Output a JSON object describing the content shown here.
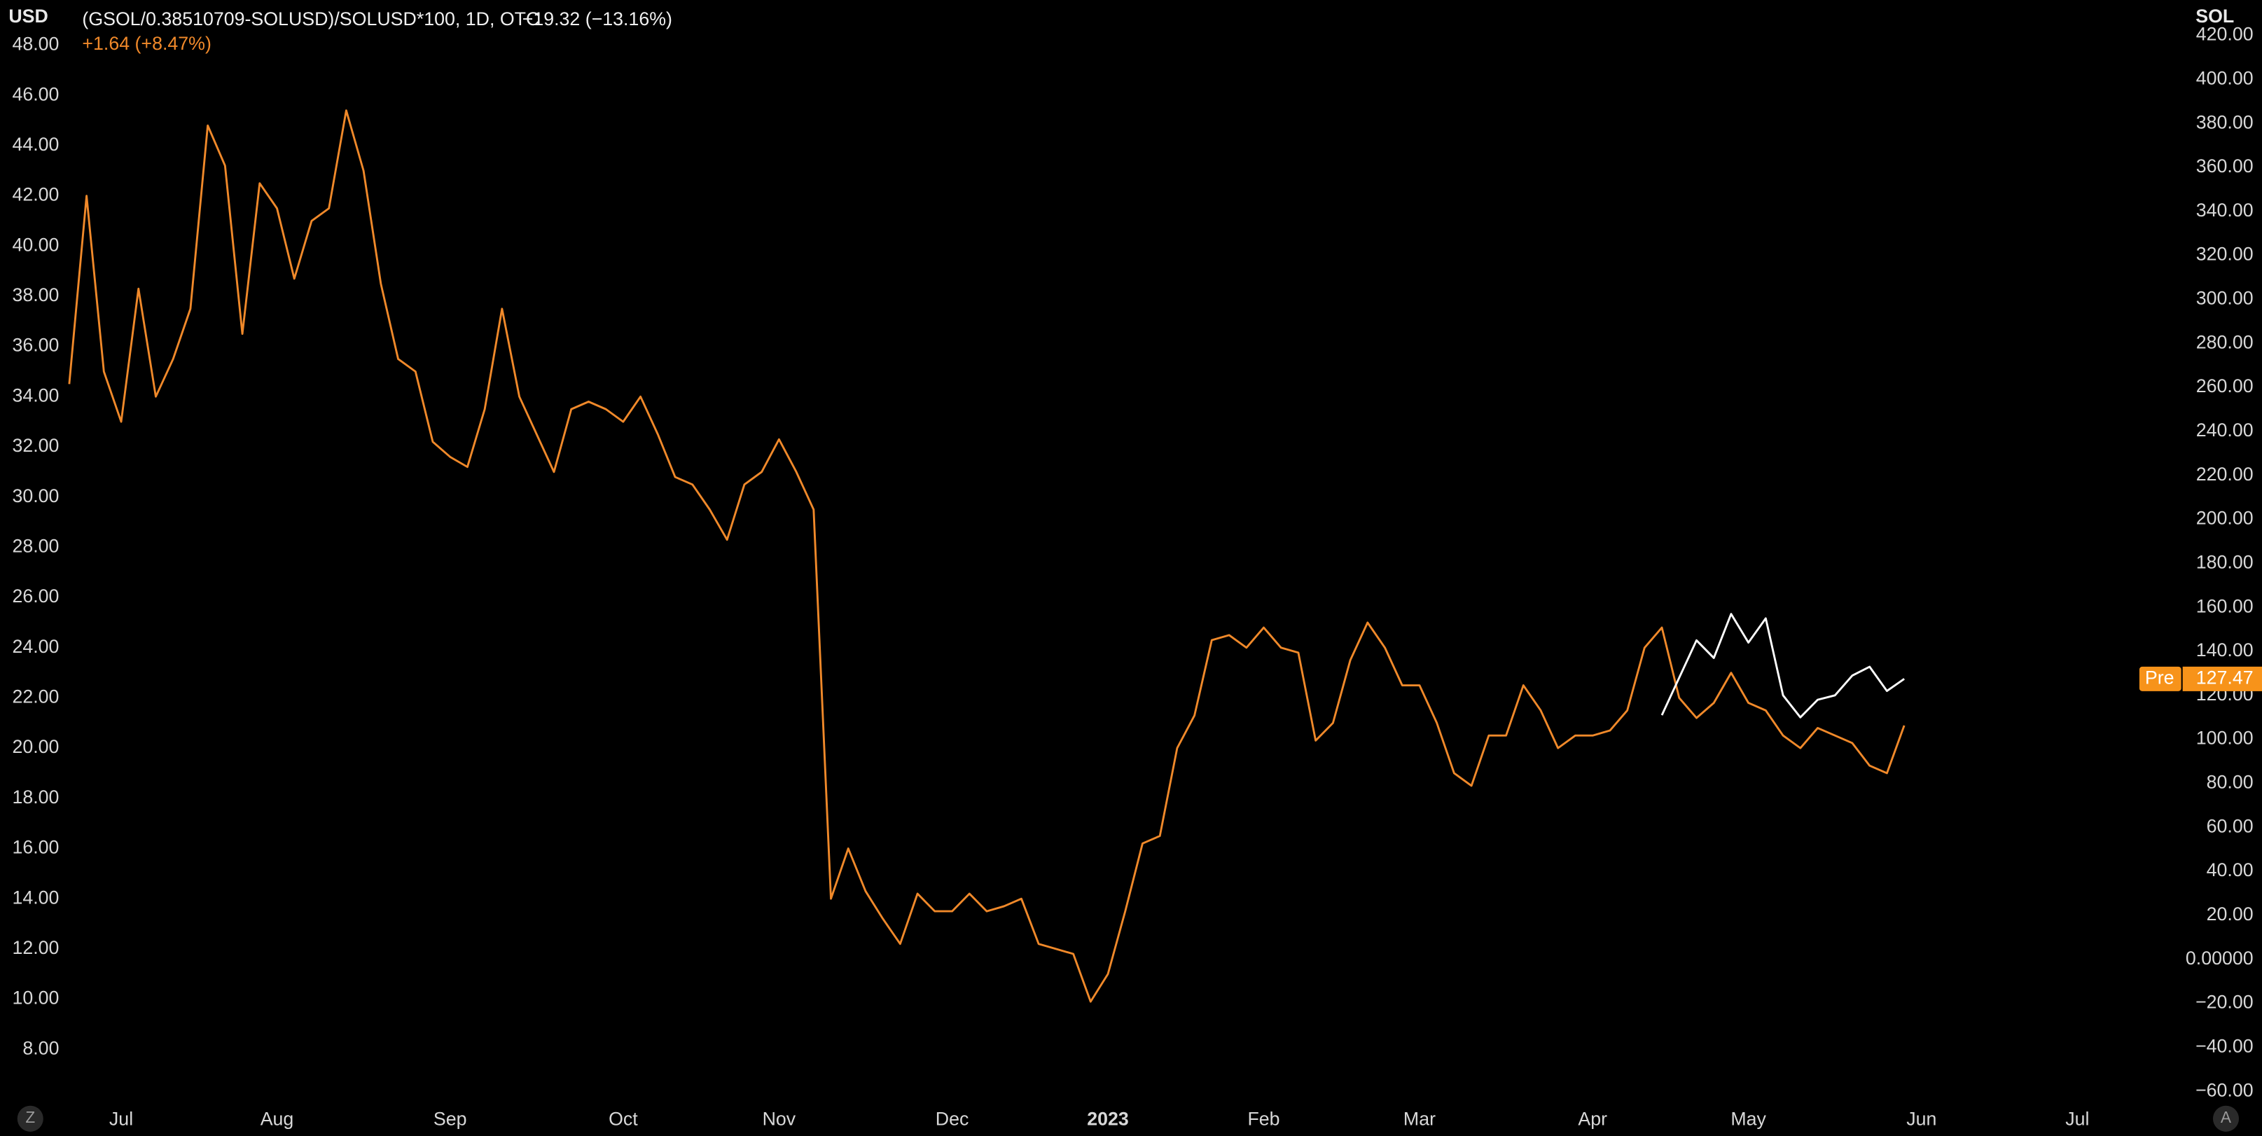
{
  "chart_data": {
    "type": "line",
    "title": "(GSOL/0.38510709-SOLUSD)/SOLUSD*100, 1D, OTC",
    "change": "−19.32 (−13.16%)",
    "change_2": "+1.64 (+8.47%)",
    "y_unit": "USD",
    "y2_unit": "SOL",
    "price_tag": {
      "session": "Pre",
      "value_label": "127.47"
    },
    "scale_buttons": [
      "Z",
      "A"
    ],
    "background": "#000000",
    "grid": false,
    "categories": [
      null,
      null,
      null,
      "Jul",
      null,
      null,
      null,
      null,
      null,
      null,
      null,
      null,
      "Aug",
      null,
      null,
      null,
      null,
      null,
      null,
      null,
      null,
      null,
      "Sep",
      null,
      null,
      null,
      null,
      null,
      null,
      null,
      null,
      null,
      "Oct",
      null,
      null,
      null,
      null,
      null,
      null,
      null,
      null,
      "Nov",
      null,
      null,
      null,
      null,
      null,
      null,
      null,
      null,
      null,
      "Dec",
      null,
      null,
      null,
      null,
      null,
      null,
      null,
      null,
      "2023",
      null,
      null,
      null,
      null,
      null,
      null,
      null,
      null,
      "Feb",
      null,
      null,
      null,
      null,
      null,
      null,
      null,
      null,
      "Mar",
      null,
      null,
      null,
      null,
      null,
      null,
      null,
      null,
      null,
      "Apr",
      null,
      null,
      null,
      null,
      null,
      null,
      null,
      null,
      "May",
      null,
      null,
      null,
      null,
      null,
      null,
      null,
      null,
      null,
      "Jun",
      null,
      null,
      null,
      null,
      null,
      null,
      null,
      null,
      "Jul",
      null,
      null,
      null,
      null,
      null
    ],
    "series": [
      {
        "name": "(GSOL/0.38510709-SOLUSD)/SOLUSD*100",
        "color": "#f0892a",
        "axis": "y",
        "values": [
          34.5,
          42,
          35,
          33,
          38.3,
          34,
          35.5,
          37.5,
          44.8,
          43.2,
          36.5,
          42.5,
          41.5,
          38.7,
          41,
          41.5,
          45.4,
          43,
          38.5,
          35.5,
          35,
          32.2,
          31.6,
          31.2,
          33.5,
          37.5,
          34,
          32.5,
          31,
          33.5,
          33.8,
          33.5,
          33,
          34,
          32.5,
          30.8,
          30.5,
          29.5,
          28.3,
          30.5,
          31,
          32.3,
          31,
          29.5,
          14,
          16,
          14.3,
          13.2,
          12.2,
          14.2,
          13.5,
          13.5,
          14.2,
          13.5,
          13.7,
          14,
          12.2,
          12,
          11.8,
          9.9,
          11,
          13.5,
          16.2,
          16.5,
          20,
          21.3,
          24.3,
          24.5,
          24,
          24.8,
          24,
          23.8,
          20.3,
          21,
          23.5,
          25,
          24,
          22.5,
          22.5,
          21,
          19,
          18.5,
          20.5,
          20.5,
          22.5,
          21.5,
          20,
          20.5,
          20.5,
          20.7,
          21.5,
          24,
          24.8,
          22,
          21.2,
          21.8,
          23,
          21.8,
          21.5,
          20.5,
          20,
          20.8,
          20.5,
          20.2,
          19.3,
          19,
          20.9,
          null,
          null,
          null,
          null,
          null,
          null,
          null,
          null,
          null,
          null,
          null,
          null,
          null,
          null,
          null
        ]
      },
      {
        "name": "SOL",
        "color": "#ffffff",
        "axis": "y2",
        "values": [
          null,
          null,
          null,
          null,
          null,
          null,
          null,
          null,
          null,
          null,
          null,
          null,
          null,
          null,
          null,
          null,
          null,
          null,
          null,
          null,
          null,
          null,
          null,
          null,
          null,
          null,
          null,
          null,
          null,
          null,
          null,
          null,
          null,
          null,
          null,
          null,
          null,
          null,
          null,
          null,
          null,
          null,
          null,
          null,
          null,
          null,
          null,
          null,
          null,
          null,
          null,
          null,
          null,
          null,
          null,
          null,
          null,
          null,
          null,
          null,
          null,
          null,
          null,
          null,
          null,
          null,
          null,
          null,
          null,
          null,
          null,
          null,
          null,
          null,
          null,
          null,
          null,
          null,
          null,
          null,
          null,
          null,
          null,
          null,
          null,
          null,
          null,
          null,
          null,
          null,
          null,
          null,
          111,
          128,
          145,
          137,
          157,
          144,
          155,
          120,
          110,
          118,
          120,
          129,
          133,
          122,
          127.47,
          null,
          null,
          null,
          null,
          null,
          null,
          null,
          null,
          null,
          null,
          null,
          null,
          null,
          null,
          null
        ]
      }
    ],
    "ylim": [
      6.1,
      49.8
    ],
    "yticks": [
      {
        "value": 8,
        "label": "8.00"
      },
      {
        "value": 10,
        "label": "10.00"
      },
      {
        "value": 12,
        "label": "12.00"
      },
      {
        "value": 14,
        "label": "14.00"
      },
      {
        "value": 16,
        "label": "16.00"
      },
      {
        "value": 18,
        "label": "18.00"
      },
      {
        "value": 20,
        "label": "20.00"
      },
      {
        "value": 22,
        "label": "22.00"
      },
      {
        "value": 24,
        "label": "24.00"
      },
      {
        "value": 26,
        "label": "26.00"
      },
      {
        "value": 28,
        "label": "28.00"
      },
      {
        "value": 30,
        "label": "30.00"
      },
      {
        "value": 32,
        "label": "32.00"
      },
      {
        "value": 34,
        "label": "34.00"
      },
      {
        "value": 36,
        "label": "36.00"
      },
      {
        "value": 38,
        "label": "38.00"
      },
      {
        "value": 40,
        "label": "40.00"
      },
      {
        "value": 42,
        "label": "42.00"
      },
      {
        "value": 44,
        "label": "44.00"
      },
      {
        "value": 46,
        "label": "46.00"
      },
      {
        "value": 48,
        "label": "48.00"
      }
    ],
    "y2lim": [
      -62.6,
      436.1
    ],
    "y2ticks": [
      {
        "value": -60,
        "label": "−60.00"
      },
      {
        "value": -40,
        "label": "−40.00"
      },
      {
        "value": -20,
        "label": "−20.00"
      },
      {
        "value": 0,
        "label": "0.00000"
      },
      {
        "value": 20,
        "label": "20.00"
      },
      {
        "value": 40,
        "label": "40.00"
      },
      {
        "value": 60,
        "label": "60.00"
      },
      {
        "value": 80,
        "label": "80.00"
      },
      {
        "value": 100,
        "label": "100.00"
      },
      {
        "value": 120,
        "label": "120.00"
      },
      {
        "value": 140,
        "label": "140.00"
      },
      {
        "value": 160,
        "label": "160.00"
      },
      {
        "value": 180,
        "label": "180.00"
      },
      {
        "value": 200,
        "label": "200.00"
      },
      {
        "value": 220,
        "label": "220.00"
      },
      {
        "value": 240,
        "label": "240.00"
      },
      {
        "value": 260,
        "label": "260.00"
      },
      {
        "value": 280,
        "label": "280.00"
      },
      {
        "value": 300,
        "label": "300.00"
      },
      {
        "value": 320,
        "label": "320.00"
      },
      {
        "value": 340,
        "label": "340.00"
      },
      {
        "value": 360,
        "label": "360.00"
      },
      {
        "value": 380,
        "label": "380.00"
      },
      {
        "value": 400,
        "label": "400.00"
      },
      {
        "value": 420,
        "label": "420.00"
      }
    ]
  }
}
